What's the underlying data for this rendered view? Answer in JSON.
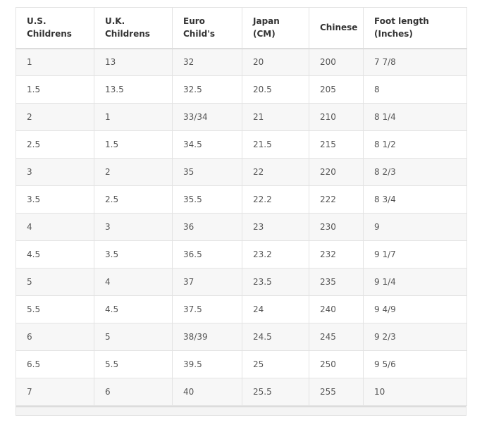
{
  "table": {
    "header": [
      [
        "U.S.",
        "Childrens"
      ],
      [
        "U.K.",
        "Childrens"
      ],
      [
        "Euro",
        "Child's"
      ],
      [
        "Japan",
        "(CM)"
      ],
      [
        "Chinese"
      ],
      [
        "Foot length",
        "(Inches)"
      ]
    ],
    "rows": [
      [
        "1",
        "13",
        "32",
        "20",
        "200",
        "7 7/8"
      ],
      [
        "1.5",
        "13.5",
        "32.5",
        "20.5",
        "205",
        "8"
      ],
      [
        "2",
        "1",
        "33/34",
        "21",
        "210",
        "8 1/4"
      ],
      [
        "2.5",
        "1.5",
        "34.5",
        "21.5",
        "215",
        "8 1/2"
      ],
      [
        "3",
        "2",
        "35",
        "22",
        "220",
        "8 2/3"
      ],
      [
        "3.5",
        "2.5",
        "35.5",
        "22.2",
        "222",
        "8 3/4"
      ],
      [
        "4",
        "3",
        "36",
        "23",
        "230",
        "9"
      ],
      [
        "4.5",
        "3.5",
        "36.5",
        "23.2",
        "232",
        "9 1/7"
      ],
      [
        "5",
        "4",
        "37",
        "23.5",
        "235",
        "9 1/4"
      ],
      [
        "5.5",
        "4.5",
        "37.5",
        "24",
        "240",
        "9 4/9"
      ],
      [
        "6",
        "5",
        "38/39",
        "24.5",
        "245",
        "9 2/3"
      ],
      [
        "6.5",
        "5.5",
        "39.5",
        "25",
        "250",
        "9 5/6"
      ],
      [
        "7",
        "6",
        "40",
        "25.5",
        "255",
        "10"
      ]
    ]
  }
}
